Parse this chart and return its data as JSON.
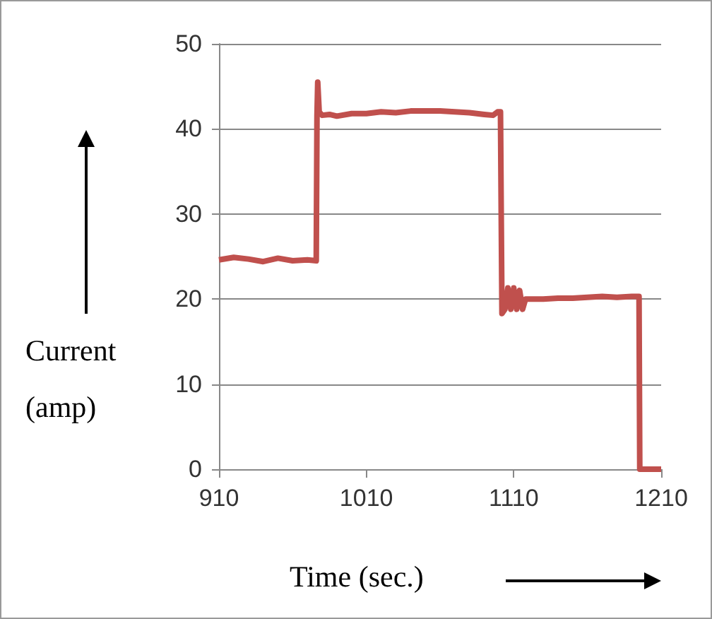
{
  "chart_data": {
    "type": "line",
    "xlabel": "Time (sec.)",
    "ylabel": "Current (amp)",
    "x": [
      910,
      920,
      930,
      940,
      950,
      960,
      970,
      976,
      976.5,
      977,
      978,
      980,
      985,
      990,
      1000,
      1010,
      1020,
      1030,
      1040,
      1050,
      1060,
      1070,
      1080,
      1090,
      1096,
      1099,
      1101,
      1101.5,
      1102,
      1104,
      1106,
      1108,
      1110,
      1112,
      1114,
      1116,
      1118,
      1120,
      1122,
      1124,
      1130,
      1140,
      1150,
      1160,
      1170,
      1180,
      1190,
      1195,
      1195.5,
      1210
    ],
    "series": [
      {
        "color": "#c0504d",
        "values": [
          24.6,
          24.9,
          24.7,
          24.4,
          24.8,
          24.5,
          24.6,
          24.5,
          41.5,
          45.5,
          42,
          41.6,
          41.7,
          41.5,
          41.8,
          41.8,
          42,
          41.9,
          42.1,
          42.1,
          42.1,
          42,
          41.9,
          41.7,
          41.6,
          42,
          42,
          30,
          18.3,
          18.8,
          21.3,
          18.8,
          21.3,
          18.8,
          21,
          18.8,
          20,
          20,
          20,
          20,
          20,
          20.1,
          20.1,
          20.2,
          20.3,
          20.2,
          20.3,
          20.3,
          0,
          0
        ]
      }
    ],
    "xlim": [
      910,
      1210
    ],
    "xticks": [
      910,
      1010,
      1110,
      1210
    ],
    "ylim": [
      0,
      50
    ],
    "yticks": [
      0,
      10,
      20,
      30,
      40,
      50
    ],
    "grid": "y",
    "marker": "none",
    "line_style": "solid"
  }
}
